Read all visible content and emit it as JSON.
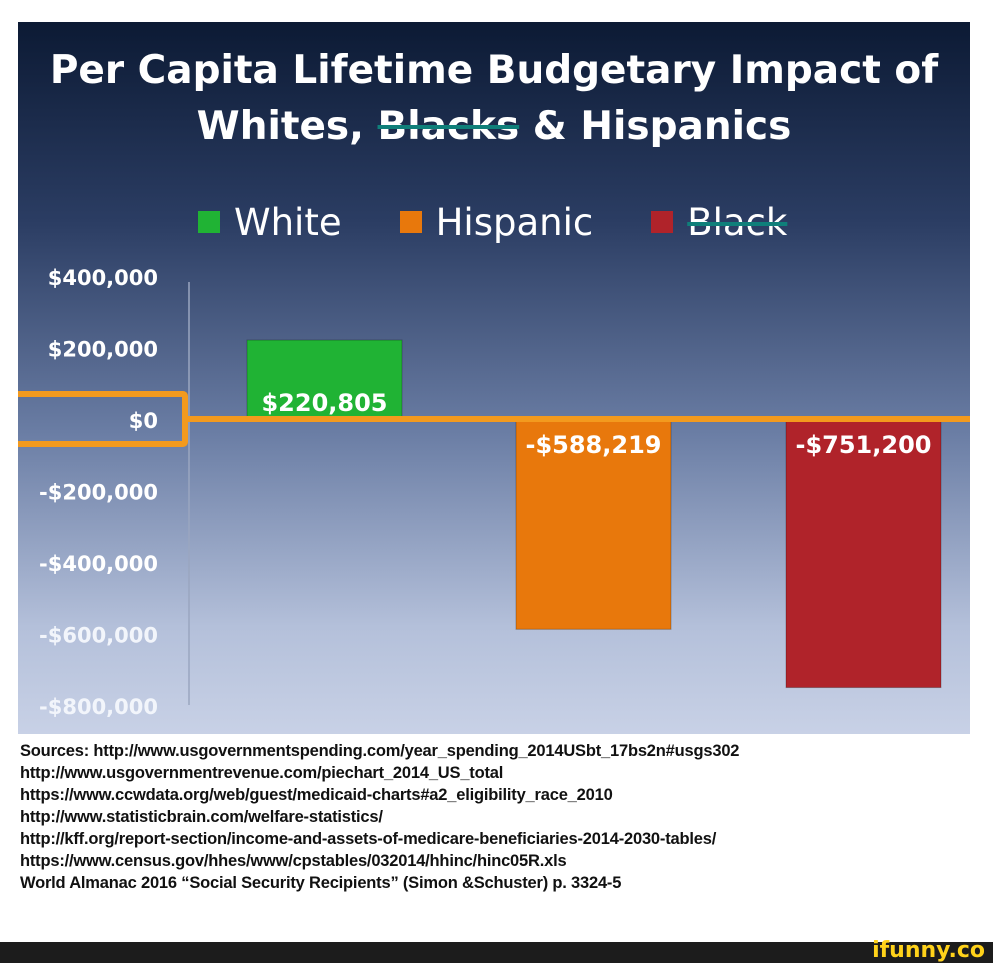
{
  "chart_data": {
    "type": "bar",
    "title_line1": "Per Capita Lifetime Budgetary Impact of",
    "title_line2_a": "Whites, ",
    "title_line2_struck": "Blacks",
    "title_line2_b": " & Hispanics",
    "categories": [
      "White",
      "Hispanic",
      "Black"
    ],
    "values": [
      220805,
      -588219,
      -751200
    ],
    "value_labels": [
      "$220,805",
      "-$588,219",
      "-$751,200"
    ],
    "colors": [
      "#20b334",
      "#e8780c",
      "#b0232a"
    ],
    "legend": [
      {
        "label": "White",
        "color": "#20b334",
        "struck": false
      },
      {
        "label": "Hispanic",
        "color": "#e8780c",
        "struck": false
      },
      {
        "label": "Black",
        "color": "#b0232a",
        "struck": true
      }
    ],
    "yticks": [
      400000,
      200000,
      0,
      -200000,
      -400000,
      -600000,
      -800000
    ],
    "ytick_labels": [
      "$400,000",
      "$200,000",
      "$0",
      "-$200,000",
      "-$400,000",
      "-$600,000",
      "-$800,000"
    ],
    "ylim": [
      -800000,
      400000
    ],
    "highlight_tick": "$0",
    "highlight_color": "#f39a1e",
    "xlabel": "",
    "ylabel": ""
  },
  "sources": [
    "Sources: http://www.usgovernmentspending.com/year_spending_2014USbt_17bs2n#usgs302",
    "http://www.usgovernmentrevenue.com/piechart_2014_US_total",
    "https://www.ccwdata.org/web/guest/medicaid-charts#a2_eligibility_race_2010",
    "http://www.statisticbrain.com/welfare-statistics/",
    "http://kff.org/report-section/income-and-assets-of-medicare-beneficiaries-2014-2030-tables/",
    "https://www.census.gov/hhes/www/cpstables/032014/hhinc/hinc05R.xls",
    "World Almanac 2016 “Social Security Recipients” (Simon &Schuster) p. 3324-5"
  ],
  "watermark": "ifunny.co"
}
